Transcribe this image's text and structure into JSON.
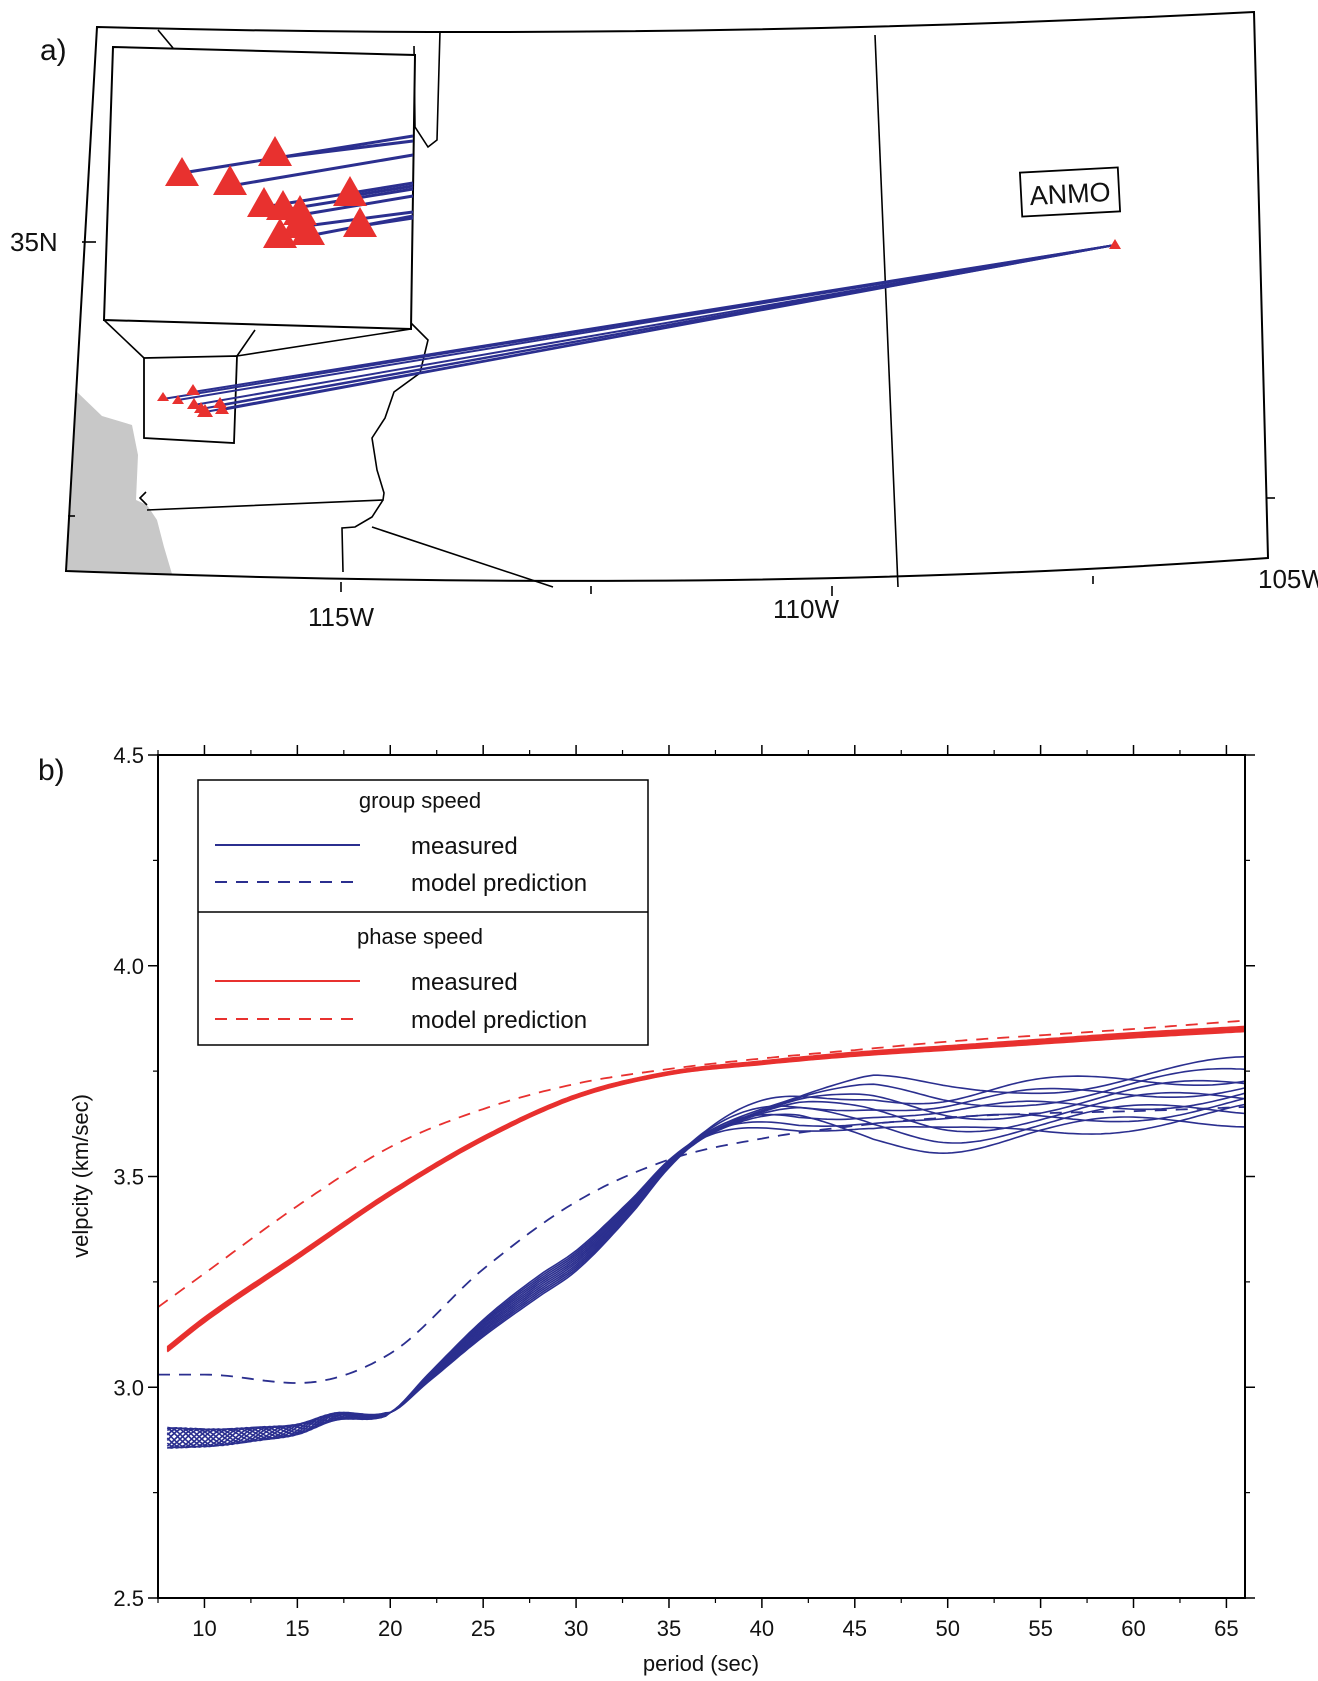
{
  "panel_a": {
    "label": "a)",
    "lat_labels": [
      "35N"
    ],
    "lon_labels": [
      "115W",
      "110W",
      "105W"
    ],
    "station_label": "ANMO",
    "colors": {
      "ray": "#2b2f8f",
      "event": "#e8312f",
      "ocean": "#c8c8c8"
    }
  },
  "panel_b": {
    "label": "b)",
    "legend": {
      "group_title": "group speed",
      "group_measured": "measured",
      "group_model": "model prediction",
      "phase_title": "phase speed",
      "phase_measured": "measured",
      "phase_model": "model prediction"
    }
  },
  "chart_data": {
    "type": "line",
    "xlabel": "period (sec)",
    "ylabel": "velpcity (km/sec)",
    "xlim": [
      7.5,
      66
    ],
    "ylim": [
      2.5,
      4.5
    ],
    "xticks": [
      10,
      15,
      20,
      25,
      30,
      35,
      40,
      45,
      50,
      55,
      60,
      65
    ],
    "yticks": [
      2.5,
      3.0,
      3.5,
      4.0,
      4.5
    ],
    "ytick_labels": [
      "2.5",
      "3.0",
      "3.5",
      "4.0",
      "4.5"
    ],
    "colors": {
      "group": "#2b2f8f",
      "phase": "#e8312f"
    },
    "series": [
      {
        "name": "phase speed model prediction",
        "style": "dashed",
        "color": "#e8312f",
        "x": [
          7.5,
          10,
          15,
          20,
          25,
          30,
          35,
          40,
          45,
          50,
          55,
          60,
          66
        ],
        "y": [
          3.19,
          3.27,
          3.43,
          3.57,
          3.66,
          3.72,
          3.755,
          3.78,
          3.8,
          3.82,
          3.835,
          3.85,
          3.87
        ]
      },
      {
        "name": "phase speed measured",
        "style": "solid",
        "color": "#e8312f",
        "count": 12,
        "x": [
          8,
          10,
          15,
          20,
          25,
          30,
          35,
          40,
          45,
          50,
          55,
          60,
          66
        ],
        "y": [
          3.09,
          3.16,
          3.31,
          3.46,
          3.59,
          3.69,
          3.745,
          3.77,
          3.79,
          3.805,
          3.82,
          3.835,
          3.85
        ]
      },
      {
        "name": "group speed model prediction",
        "style": "dashed",
        "color": "#2b2f8f",
        "x": [
          7.5,
          10,
          15,
          20,
          25,
          30,
          35,
          40,
          45,
          50,
          55,
          60,
          66
        ],
        "y": [
          3.03,
          3.03,
          3.01,
          3.08,
          3.28,
          3.44,
          3.54,
          3.59,
          3.62,
          3.64,
          3.65,
          3.655,
          3.665
        ]
      },
      {
        "name": "group speed measured",
        "style": "solid",
        "color": "#2b2f8f",
        "count": 11,
        "x": [
          8,
          10,
          13,
          15,
          17,
          20,
          22,
          25,
          28,
          30,
          33,
          35,
          37,
          40,
          45,
          50,
          55,
          60,
          66
        ],
        "y": [
          2.88,
          2.88,
          2.89,
          2.9,
          2.93,
          2.94,
          3.02,
          3.14,
          3.24,
          3.3,
          3.43,
          3.53,
          3.6,
          3.65,
          3.66,
          3.64,
          3.66,
          3.68,
          3.7
        ]
      }
    ]
  }
}
